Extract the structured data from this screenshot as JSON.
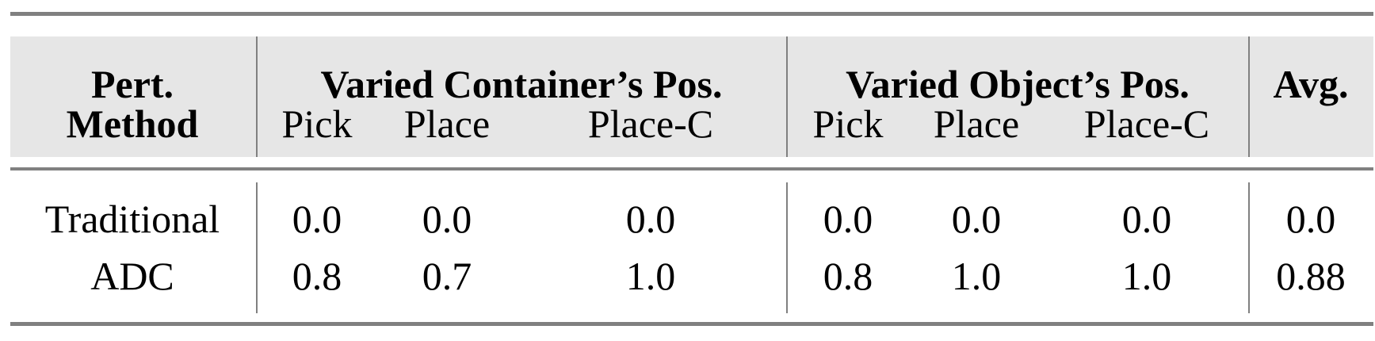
{
  "table": {
    "header_row1": {
      "method": "Pert.",
      "group1": "Varied Container’s Pos.",
      "group2": "Varied Object’s Pos.",
      "avg": "Avg."
    },
    "header_row2": {
      "method": "Method",
      "columns": [
        "Pick",
        "Place",
        "Place-C",
        "Pick",
        "Place",
        "Place-C"
      ]
    },
    "rows": [
      {
        "method": "Traditional",
        "values": [
          "0.0",
          "0.0",
          "0.0",
          "0.0",
          "0.0",
          "0.0"
        ],
        "avg": "0.0"
      },
      {
        "method": "ADC",
        "values": [
          "0.8",
          "0.7",
          "1.0",
          "0.8",
          "1.0",
          "1.0"
        ],
        "avg": "0.88"
      }
    ]
  },
  "colors": {
    "rule": "#808080",
    "header_bg": "#e6e6e6"
  }
}
